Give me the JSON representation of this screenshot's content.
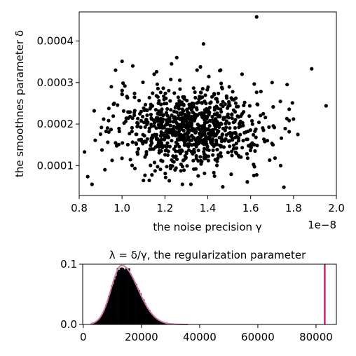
{
  "chart_data": [
    {
      "type": "scatter",
      "xlabel": "the noise precision γ",
      "ylabel": "the smoothnes parameter δ",
      "x_offset_label": "1e−8",
      "xlim": [
        0.8,
        2.0
      ],
      "ylim": [
        2.8e-05,
        0.00047
      ],
      "x_ticks": [
        0.8,
        1.0,
        1.2,
        1.4,
        1.6,
        1.8,
        2.0
      ],
      "x_tick_labels": [
        "0.8",
        "1.0",
        "1.2",
        "1.4",
        "1.6",
        "1.8",
        "2.0"
      ],
      "y_ticks": [
        0.0001,
        0.0002,
        0.0003,
        0.0004
      ],
      "y_tick_labels": [
        "0.0001",
        "0.0002",
        "0.0003",
        "0.0004"
      ],
      "marker_color": "#000000",
      "grid": false,
      "points": [
        [
          1.628,
          0.000458
        ],
        [
          1.885,
          0.000333
        ],
        [
          1.952,
          0.000244
        ],
        [
          1.38,
          0.000393
        ],
        [
          0.825,
          0.000133
        ],
        [
          0.875,
          0.000161
        ],
        [
          1.47,
          4.9e-05
        ],
        [
          1.755,
          4.8e-05
        ],
        [
          1.0,
          0.000351
        ],
        [
          1.255,
          0.00036
        ],
        [
          1.77,
          0.000295
        ],
        [
          1.8,
          0.000212
        ],
        [
          1.74,
          0.0001
        ],
        [
          1.82,
          0.000175
        ],
        [
          1.795,
          0.000251
        ],
        [
          0.95,
          0.00029
        ],
        [
          0.87,
          0.000232
        ],
        [
          0.92,
          9e-05
        ],
        [
          1.05,
          0.00034
        ],
        [
          1.46,
          0.00033
        ],
        [
          1.56,
          0.00032
        ],
        [
          1.7,
          0.0003
        ],
        [
          1.35,
          0.00033
        ],
        [
          1.15,
          0.00032
        ]
      ],
      "random_points": {
        "count": 900,
        "x_mean": 1.32,
        "x_sd": 0.17,
        "y_mean": 0.00019,
        "y_sd": 4.8e-05,
        "seed": 7
      }
    },
    {
      "type": "histogram",
      "title": "λ = δ/γ, the regularization parameter",
      "xlim": [
        -200,
        87000
      ],
      "ylim": [
        0,
        0.1
      ],
      "x_ticks": [
        0,
        20000,
        40000,
        60000,
        80000
      ],
      "x_tick_labels": [
        "0",
        "20000",
        "40000",
        "60000",
        "80000"
      ],
      "y_ticks": [
        0.0,
        0.1
      ],
      "y_tick_labels": [
        "0.0",
        "0.1"
      ],
      "bin_width": 500,
      "bar_color": "#000000",
      "curve_color": "#cc79a7",
      "vline_color": "#c0266e",
      "vline_x": 83000,
      "density": {
        "mode": 13200,
        "peak": 0.098,
        "sd_left": 3600,
        "sd_right": 5600
      }
    }
  ]
}
